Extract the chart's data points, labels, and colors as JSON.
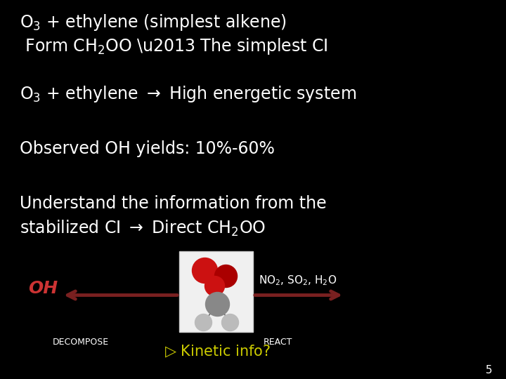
{
  "background_color": "#000000",
  "text_color": "#ffffff",
  "slide_number": "5",
  "oh_color": "#cc3333",
  "decompose_label": "DECOMPOSE",
  "react_label": "REACT",
  "arrow_color": "#7a2020",
  "kinetic_color": "#cccc00",
  "font_size_large": 17,
  "font_size_med": 15,
  "font_size_small": 11,
  "font_size_tiny": 9,
  "mol_box_color": "#e8e8e8",
  "mol_red": "#cc1111",
  "mol_gray_c": "#888888",
  "mol_gray_h": "#bbbbbb"
}
